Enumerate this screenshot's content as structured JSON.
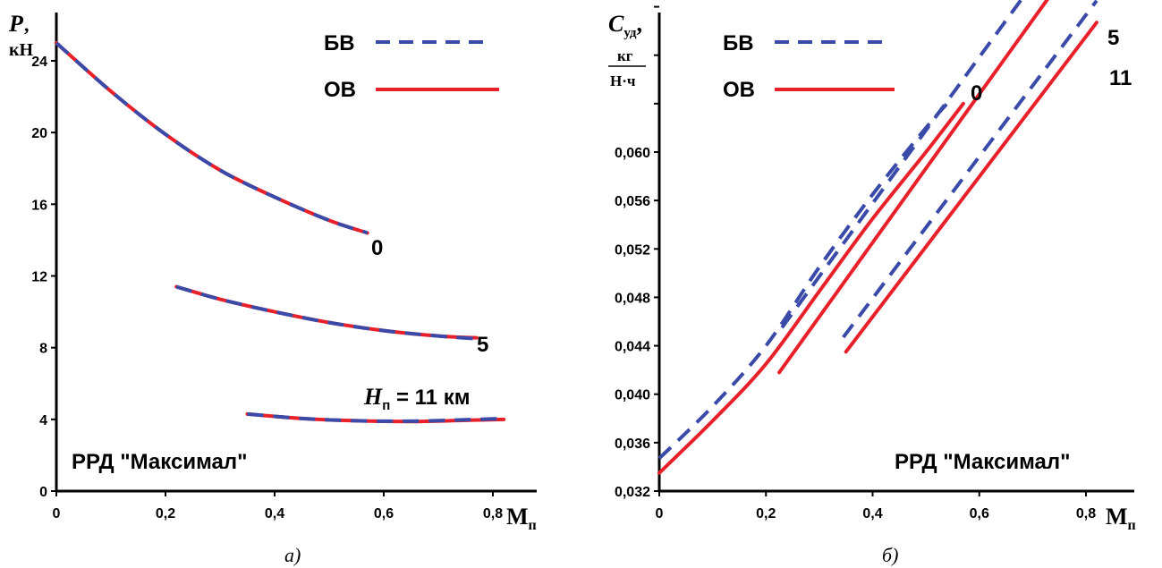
{
  "colors": {
    "bv": "#3a4aa8",
    "ov": "#e8202a"
  },
  "chart_data": [
    {
      "type": "line",
      "caption": "а)",
      "ylabel_symbol": "P",
      "ylabel_unit": "кН",
      "xlabel_symbol": "М",
      "xlabel_sub": "п",
      "xlim": [
        0,
        0.85
      ],
      "ylim": [
        0,
        26
      ],
      "xticks": [
        "0",
        "0,2",
        "0,4",
        "0,6",
        "0,8"
      ],
      "xtick_values": [
        0,
        0.2,
        0.4,
        0.6,
        0.8
      ],
      "yticks": [
        "0",
        "4",
        "8",
        "12",
        "16",
        "20",
        "24"
      ],
      "ytick_values": [
        0,
        4,
        8,
        12,
        16,
        20,
        24
      ],
      "legend": [
        {
          "label": "БВ",
          "style": "dashed"
        },
        {
          "label": "ОВ",
          "style": "solid"
        }
      ],
      "annotation": "РРД  \"Максимал\"",
      "curve_labels": [
        {
          "text": "0",
          "x": 0.6,
          "y": 13.9
        },
        {
          "text": "5",
          "x": 0.8,
          "y": 8.2
        },
        {
          "h_symbol": "H",
          "h_sub": "п",
          "text": " = 11 км",
          "x": 0.58,
          "y": 5.6
        }
      ],
      "series": [
        {
          "name": "0",
          "bv": [
            [
              0,
              25
            ],
            [
              0.1,
              22.3
            ],
            [
              0.2,
              19.9
            ],
            [
              0.3,
              17.9
            ],
            [
              0.4,
              16.4
            ],
            [
              0.5,
              15.1
            ],
            [
              0.57,
              14.4
            ]
          ],
          "ov": [
            [
              0,
              25
            ],
            [
              0.1,
              22.3
            ],
            [
              0.2,
              19.9
            ],
            [
              0.3,
              17.9
            ],
            [
              0.4,
              16.4
            ],
            [
              0.5,
              15.1
            ],
            [
              0.57,
              14.4
            ]
          ]
        },
        {
          "name": "5",
          "bv": [
            [
              0.22,
              11.4
            ],
            [
              0.3,
              10.7
            ],
            [
              0.4,
              10.0
            ],
            [
              0.5,
              9.4
            ],
            [
              0.6,
              8.95
            ],
            [
              0.7,
              8.65
            ],
            [
              0.77,
              8.5
            ]
          ],
          "ov": [
            [
              0.22,
              11.4
            ],
            [
              0.3,
              10.7
            ],
            [
              0.4,
              10.0
            ],
            [
              0.5,
              9.4
            ],
            [
              0.6,
              8.95
            ],
            [
              0.7,
              8.65
            ],
            [
              0.77,
              8.55
            ]
          ]
        },
        {
          "name": "11",
          "bv": [
            [
              0.35,
              4.3
            ],
            [
              0.45,
              4.05
            ],
            [
              0.55,
              3.92
            ],
            [
              0.65,
              3.9
            ],
            [
              0.75,
              3.98
            ],
            [
              0.82,
              4.05
            ]
          ],
          "ov": [
            [
              0.35,
              4.3
            ],
            [
              0.45,
              4.05
            ],
            [
              0.55,
              3.92
            ],
            [
              0.65,
              3.88
            ],
            [
              0.75,
              3.95
            ],
            [
              0.82,
              4.0
            ]
          ]
        }
      ]
    },
    {
      "type": "line",
      "caption": "б)",
      "ylabel_symbol": "C",
      "ylabel_sub": "уд",
      "ylabel_unit_num": "кг",
      "ylabel_unit_den": "Н·ч",
      "xlabel_symbol": "М",
      "xlabel_sub": "п",
      "xlim": [
        0,
        0.85
      ],
      "ylim": [
        0.032,
        0.078
      ],
      "xticks": [
        "0",
        "0,2",
        "0,4",
        "0,6",
        "0,8"
      ],
      "xtick_values": [
        0,
        0.2,
        0.4,
        0.6,
        0.8
      ],
      "yticks": [
        "0,032",
        "0,036",
        "0,040",
        "0,044",
        "0,048",
        "0,052",
        "0,056",
        "0,060"
      ],
      "ytick_values": [
        0.032,
        0.036,
        0.04,
        0.044,
        0.048,
        0.052,
        0.056,
        0.06
      ],
      "legend": [
        {
          "label": "БВ",
          "style": "dashed"
        },
        {
          "label": "ОВ",
          "style": "solid"
        }
      ],
      "annotation": "РРД  \"Максимал\"",
      "curve_labels": [
        {
          "text": "0",
          "x": 0.6,
          "y": 0.0655
        },
        {
          "text": "5",
          "x": 0.81,
          "y": 0.0765
        },
        {
          "text": "11",
          "x": 0.85,
          "y": 0.071
        }
      ],
      "series": [
        {
          "name": "0",
          "bv": [
            [
              0,
              0.0347
            ],
            [
              0.1,
              0.039
            ],
            [
              0.2,
              0.044
            ],
            [
              0.3,
              0.0505
            ],
            [
              0.4,
              0.0565
            ],
            [
              0.5,
              0.062
            ],
            [
              0.55,
              0.0645
            ]
          ],
          "ov": [
            [
              0,
              0.0335
            ],
            [
              0.1,
              0.0378
            ],
            [
              0.2,
              0.0425
            ],
            [
              0.3,
              0.0485
            ],
            [
              0.4,
              0.0545
            ],
            [
              0.5,
              0.06
            ],
            [
              0.57,
              0.064
            ]
          ]
        },
        {
          "name": "5",
          "bv": [
            [
              0.23,
              0.0455
            ],
            [
              0.76,
              0.0775
            ]
          ],
          "ov": [
            [
              0.225,
              0.0418
            ],
            [
              0.77,
              0.0752
            ]
          ]
        },
        {
          "name": "11",
          "bv": [
            [
              0.345,
              0.0447
            ],
            [
              0.82,
              0.0725
            ]
          ],
          "ov": [
            [
              0.35,
              0.0435
            ],
            [
              0.82,
              0.0707
            ]
          ]
        }
      ]
    }
  ]
}
